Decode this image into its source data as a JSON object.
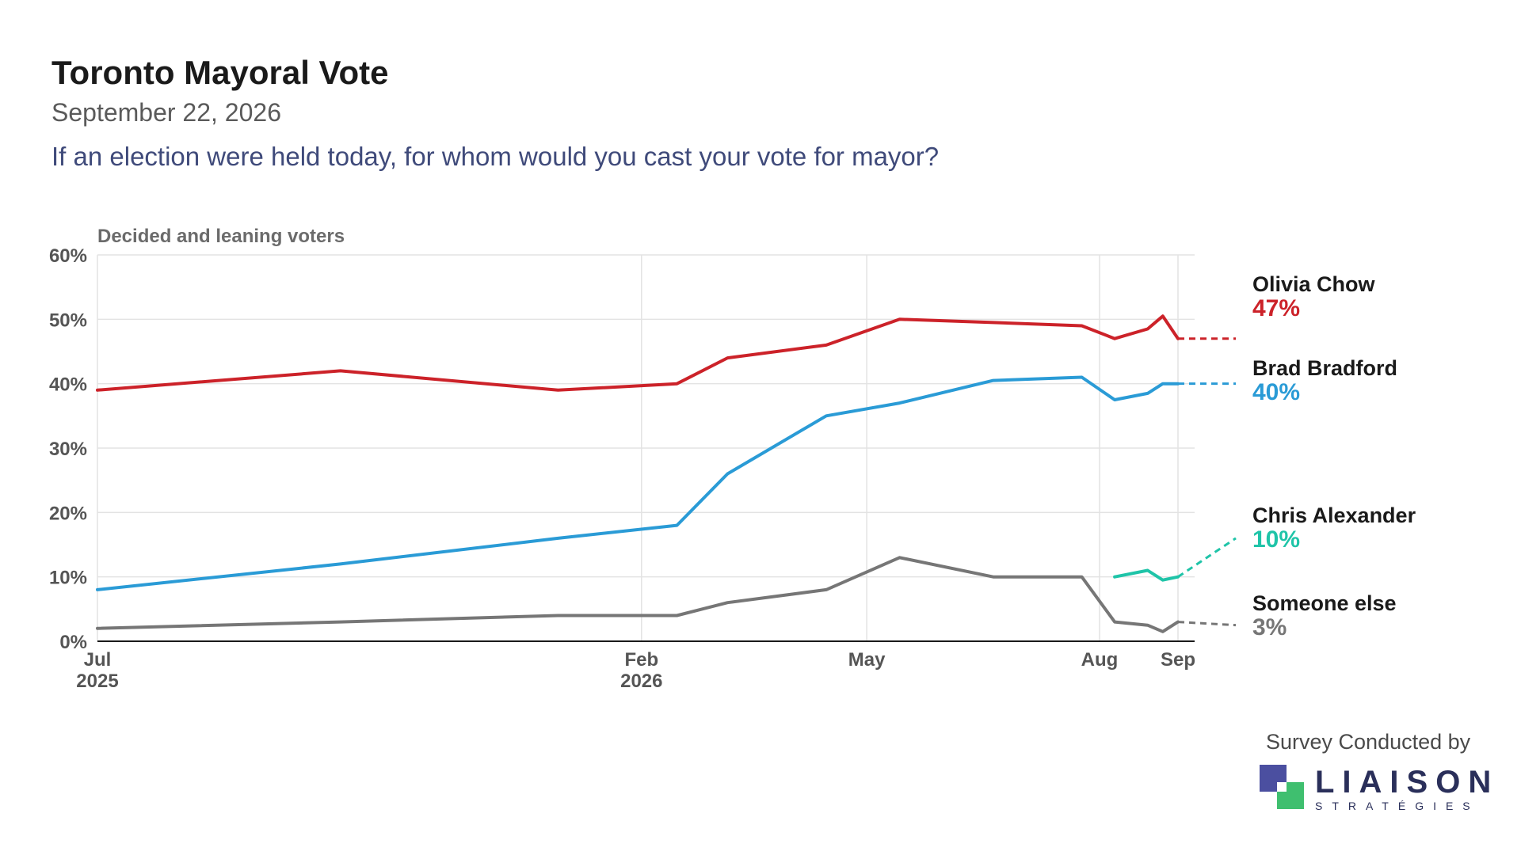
{
  "header": {
    "title": "Toronto Mayoral Vote",
    "date": "September 22, 2026",
    "question": "If an election were held today, for whom would you cast your vote for mayor?"
  },
  "chart_data": {
    "type": "line",
    "title": "Toronto Mayoral Vote",
    "subtitle": "Decided and leaning voters",
    "xlabel": "",
    "ylabel": "",
    "ylim": [
      0,
      60
    ],
    "y_ticks": [
      "0%",
      "10%",
      "20%",
      "30%",
      "40%",
      "50%",
      "60%"
    ],
    "x_ticks": [
      {
        "date": "2025-07-01",
        "label": "Jul",
        "sublabel": "2025"
      },
      {
        "date": "2026-02-01",
        "label": "Feb",
        "sublabel": "2026"
      },
      {
        "date": "2026-05-01",
        "label": "May",
        "sublabel": ""
      },
      {
        "date": "2026-08-01",
        "label": "Aug",
        "sublabel": ""
      },
      {
        "date": "2026-09-01",
        "label": "Sep",
        "sublabel": ""
      }
    ],
    "xlim": [
      "2025-07-01",
      "2026-09-01"
    ],
    "grid": true,
    "legend": "right",
    "series": [
      {
        "name": "Olivia Chow",
        "value_label": "47%",
        "color": "#cc2229",
        "x": [
          "2025-07-01",
          "2025-10-05",
          "2025-12-30",
          "2026-02-15",
          "2026-03-07",
          "2026-04-15",
          "2026-05-14",
          "2026-06-20",
          "2026-07-25",
          "2026-08-07",
          "2026-08-20",
          "2026-08-26",
          "2026-09-01"
        ],
        "y": [
          39,
          42,
          39,
          40,
          44,
          46,
          50,
          49.5,
          49,
          47,
          48.5,
          50.5,
          47
        ],
        "projected": {
          "x": "2026-09-22",
          "y": 47
        }
      },
      {
        "name": "Brad Bradford",
        "value_label": "40%",
        "color": "#2a9bd6",
        "x": [
          "2025-07-01",
          "2025-10-05",
          "2025-12-30",
          "2026-02-15",
          "2026-03-07",
          "2026-04-15",
          "2026-05-14",
          "2026-06-20",
          "2026-07-25",
          "2026-08-07",
          "2026-08-20",
          "2026-08-26",
          "2026-09-01"
        ],
        "y": [
          8,
          12,
          16,
          18,
          26,
          35,
          37,
          40.5,
          41,
          37.5,
          38.5,
          40,
          40
        ],
        "projected": {
          "x": "2026-09-22",
          "y": 40
        }
      },
      {
        "name": "Chris Alexander",
        "value_label": "10%",
        "color": "#1fc4a8",
        "x": [
          "2026-08-07",
          "2026-08-20",
          "2026-08-26",
          "2026-09-01"
        ],
        "y": [
          10,
          11,
          9.5,
          10
        ],
        "projected": {
          "x": "2026-09-22",
          "y": 16
        }
      },
      {
        "name": "Someone else",
        "value_label": "3%",
        "color": "#767676",
        "x": [
          "2025-07-01",
          "2025-10-05",
          "2025-12-30",
          "2026-02-15",
          "2026-03-07",
          "2026-04-15",
          "2026-05-14",
          "2026-06-20",
          "2026-07-25",
          "2026-08-07",
          "2026-08-20",
          "2026-08-26",
          "2026-09-01"
        ],
        "y": [
          2,
          3,
          4,
          4,
          6,
          8,
          13,
          10,
          10,
          3,
          2.5,
          1.5,
          3
        ],
        "projected": {
          "x": "2026-09-22",
          "y": 2.5
        }
      }
    ]
  },
  "footer": {
    "credit": "Survey Conducted by",
    "brand_name": "LIAISON",
    "brand_sub": "STRATÉGIES",
    "brand_colors": {
      "purple": "#4b4fa0",
      "green": "#3fbf6f"
    }
  }
}
